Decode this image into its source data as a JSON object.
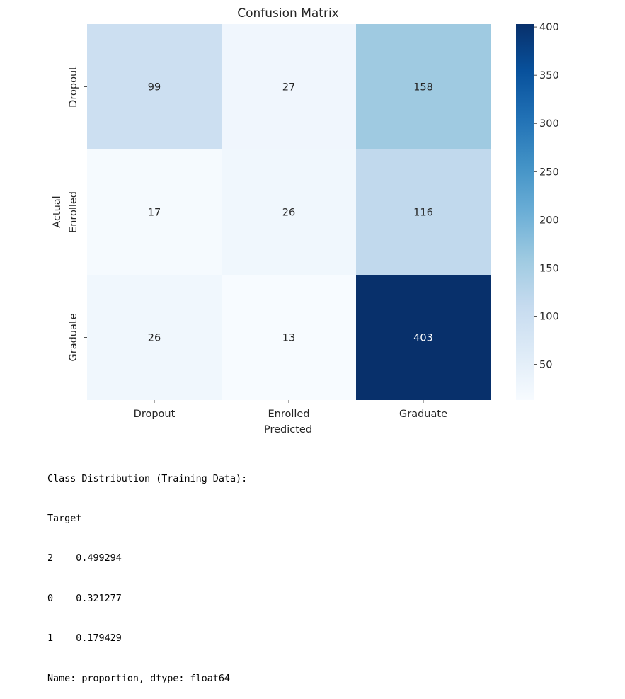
{
  "chart_data": {
    "type": "heatmap",
    "title": "Confusion Matrix",
    "xlabel": "Predicted",
    "ylabel": "Actual",
    "x_categories": [
      "Dropout",
      "Enrolled",
      "Graduate"
    ],
    "y_categories": [
      "Dropout",
      "Enrolled",
      "Graduate"
    ],
    "values": [
      [
        99,
        27,
        158
      ],
      [
        17,
        26,
        116
      ],
      [
        26,
        13,
        403
      ]
    ],
    "colormap": "Blues",
    "color_range": [
      13,
      403
    ],
    "colorbar_ticks": [
      50,
      100,
      150,
      200,
      250,
      300,
      350,
      400
    ],
    "annotations": true,
    "grid": false
  },
  "output": {
    "lines": [
      "Class Distribution (Training Data):",
      "Target",
      "2    0.499294",
      "0    0.321277",
      "1    0.179429",
      "Name: proportion, dtype: float64"
    ]
  }
}
